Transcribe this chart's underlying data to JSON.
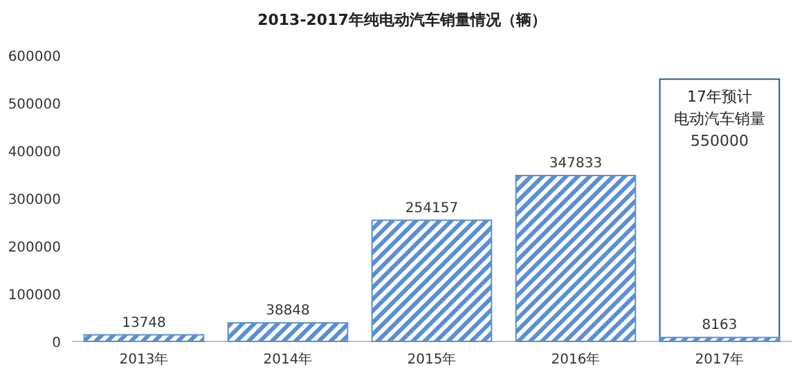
{
  "chart_data": {
    "type": "bar",
    "title": "2013-2017年纯电动汽车销量情况（辆）",
    "categories": [
      "2013年",
      "2014年",
      "2015年",
      "2016年",
      "2017年"
    ],
    "series": [
      {
        "type": "bar",
        "color": "#2f5597",
        "values": [
          null,
          null,
          null,
          null,
          550000
        ]
      },
      {
        "type": "bar",
        "color": "#5b8fd0",
        "values": [
          13748,
          38848,
          254157,
          347833,
          8163
        ]
      }
    ],
    "data_labels": true,
    "annotations": [
      {
        "text": "17年预计",
        "x": "2017年",
        "y": 550000
      },
      {
        "text": "电动汽车销量",
        "x": "2017年",
        "y": 550000
      }
    ],
    "ylim": [
      0,
      600000
    ],
    "yticks": [
      0,
      100000,
      200000,
      300000,
      400000,
      500000,
      600000
    ],
    "grid": false
  }
}
